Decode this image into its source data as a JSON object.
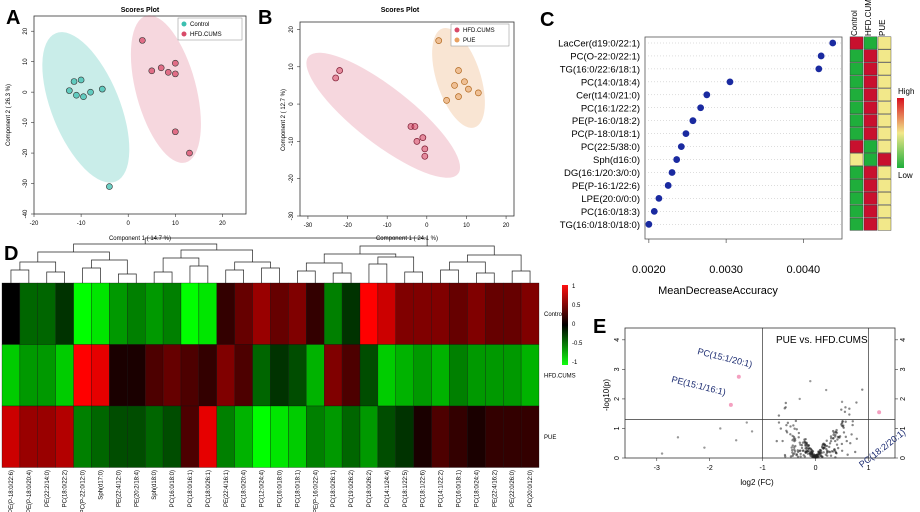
{
  "panels": {
    "A": {
      "letter": "A",
      "title": "Scores Plot",
      "xlabel": "Component 1 ( 14.7 %)",
      "ylabel": "Component 2 ( 26.3 %)",
      "xticks": [
        -20,
        -10,
        0,
        10,
        20
      ],
      "yticks": [
        20,
        10,
        0,
        -10,
        -20,
        -30,
        -40
      ],
      "legend": [
        "Control",
        "HFD.CUMS"
      ]
    },
    "B": {
      "letter": "B",
      "title": "Scores Plot",
      "xlabel": "Component 1 ( 24.1 %)",
      "ylabel": "Component 2 ( 12.7 %)",
      "xticks": [
        -30,
        -20,
        -10,
        0,
        10,
        20
      ],
      "yticks": [
        20,
        10,
        0,
        -10,
        -20,
        -30
      ],
      "legend": [
        "HFD.CUMS",
        "PUE"
      ]
    },
    "C": {
      "letter": "C",
      "xlabel": "MeanDecreaseAccuracy",
      "xticks": [
        "0.0020",
        "0.0030",
        "0.0040"
      ],
      "heat_cols": [
        "Control",
        "HFD.CUMS",
        "PUE"
      ],
      "colorbar_high": "High",
      "colorbar_low": "Low"
    },
    "D": {
      "letter": "D",
      "colorbar_ticks": [
        "1",
        "0.5",
        "0",
        "-0.5",
        "-1"
      ]
    },
    "E": {
      "letter": "E",
      "title": "PUE vs. HFD.CUMS",
      "xlabel": "log2 (FC)",
      "ylabel": "-log10(p)",
      "xticks": [
        -3,
        -2,
        -1,
        0,
        1
      ],
      "yticks": [
        0,
        1,
        2,
        3,
        4
      ],
      "annotations": [
        "PC(15:1/20:1)",
        "PE(15:1/16:1)",
        "PC(18:2/20:1)"
      ]
    }
  },
  "colors": {
    "control": "#3cbfb0",
    "hfd": "#d84a68",
    "pue": "#e8a060",
    "dot_c": "#1a2aa0",
    "heat_red": "#c8102e",
    "heat_green": "#1fae3b",
    "heat_yellow": "#f2e88a"
  },
  "chart_data": [
    {
      "type": "scatter",
      "panel": "A",
      "title": "Scores Plot",
      "xlim": [
        -20,
        25
      ],
      "ylim": [
        -40,
        25
      ],
      "series": [
        {
          "name": "Control",
          "points": [
            [
              -11,
              -1
            ],
            [
              -9.5,
              -1.5
            ],
            [
              -8,
              0
            ],
            [
              -10,
              4
            ],
            [
              -12.5,
              0.5
            ],
            [
              -5.5,
              1
            ],
            [
              -4,
              -31
            ],
            [
              -11.5,
              3.5
            ]
          ]
        },
        {
          "name": "HFD.CUMS",
          "points": [
            [
              3,
              17
            ],
            [
              5,
              7
            ],
            [
              7,
              8
            ],
            [
              8.5,
              6.5
            ],
            [
              10,
              9.5
            ],
            [
              10,
              6
            ],
            [
              10,
              -13
            ],
            [
              13,
              -20
            ]
          ]
        }
      ]
    },
    {
      "type": "scatter",
      "panel": "B",
      "title": "Scores Plot",
      "xlim": [
        -32,
        22
      ],
      "ylim": [
        -30,
        22
      ],
      "series": [
        {
          "name": "HFD.CUMS",
          "points": [
            [
              -22,
              9
            ],
            [
              -23,
              7
            ],
            [
              -4,
              -6
            ],
            [
              -3,
              -6
            ],
            [
              -1,
              -9
            ],
            [
              -2.5,
              -10
            ],
            [
              -0.5,
              -12
            ],
            [
              -0.5,
              -14
            ]
          ]
        },
        {
          "name": "PUE",
          "points": [
            [
              3,
              17
            ],
            [
              5,
              1
            ],
            [
              7,
              5
            ],
            [
              8,
              9
            ],
            [
              9.5,
              6
            ],
            [
              10.5,
              4
            ],
            [
              13,
              3
            ],
            [
              8,
              2
            ]
          ]
        }
      ]
    },
    {
      "type": "scatter",
      "panel": "C",
      "xlabel": "MeanDecreaseAccuracy",
      "xlim": [
        0.00195,
        0.0045
      ],
      "categories": [
        "LacCer(d19:0/22:1)",
        "PC(O-22:0/22:1)",
        "TG(16:0/22:6/18:1)",
        "PC(14:0/18:4)",
        "Cer(t14:0/21:0)",
        "PC(16:1/22:2)",
        "PE(P-16:0/18:2)",
        "PC(P-18:0/18:1)",
        "PC(22:5/38:0)",
        "Sph(d16:0)",
        "DG(16:1/20:3/0:0)",
        "PE(P-16:1/22:6)",
        "LPE(20:0/0:0)",
        "PC(16:0/18:3)",
        "TG(16:0/18:0/18:0)"
      ],
      "values": [
        0.00438,
        0.00423,
        0.0042,
        0.00305,
        0.00275,
        0.00267,
        0.00257,
        0.00248,
        0.00242,
        0.00236,
        0.0023,
        0.00225,
        0.00213,
        0.00207,
        0.002
      ],
      "heat": [
        [
          "hi",
          "lo",
          "mid"
        ],
        [
          "lo",
          "hi",
          "mid"
        ],
        [
          "lo",
          "hi",
          "mid"
        ],
        [
          "lo",
          "hi",
          "mid"
        ],
        [
          "lo",
          "hi",
          "mid"
        ],
        [
          "lo",
          "hi",
          "mid"
        ],
        [
          "lo",
          "hi",
          "mid"
        ],
        [
          "lo",
          "hi",
          "mid"
        ],
        [
          "hi",
          "lo",
          "mid"
        ],
        [
          "mid",
          "lo",
          "hi"
        ],
        [
          "lo",
          "hi",
          "mid"
        ],
        [
          "lo",
          "hi",
          "mid"
        ],
        [
          "lo",
          "hi",
          "mid"
        ],
        [
          "lo",
          "hi",
          "mid"
        ],
        [
          "lo",
          "hi",
          "mid"
        ]
      ]
    },
    {
      "type": "heatmap",
      "panel": "D",
      "rows": [
        "Control",
        "HFD.CUMS",
        "PUE"
      ],
      "columns": [
        "PE(P-18:0/22:6)",
        "PE(P-18:0/20:4)",
        "PE(22:2/14:0)",
        "PC(18:0/22:2)",
        "PC(P-22:0/12:0)",
        "Sph(d17:0)",
        "PE(22:4/12:0)",
        "PE(20:2/18:4)",
        "Sph(d18:0)",
        "PC(16:0/18:0)",
        "PC(18:0/16:1)",
        "PC(18:0/26:1)",
        "PE(22:4/16:1)",
        "PC(18:0/20:4)",
        "PC(12:0/24:4)",
        "PC(16:0/18:0)",
        "PC(18:0/18:1)",
        "PE(P-16:0/22:4)",
        "PC(18:0/26:1)",
        "PC(19:0/26:2)",
        "PC(18:0/26:2)",
        "PC(14:1/24:4)",
        "PC(18:1/22:5)",
        "PC(18:1/22:6)",
        "PC(14:1/22:2)",
        "PC(16:0/18:1)",
        "PC(18:0/24:4)",
        "PE(22:4/16:2)",
        "PE(22:0/26:0)",
        "PC(20:0/12:0)"
      ],
      "values": [
        [
          0,
          -0.4,
          -0.4,
          -0.2,
          -1,
          -0.9,
          -0.6,
          -0.5,
          -0.6,
          -0.5,
          -1,
          -0.9,
          0.2,
          0.4,
          0.6,
          0.4,
          0.5,
          0.2,
          -0.5,
          -0.2,
          1,
          0.8,
          0.5,
          0.5,
          0.5,
          0.4,
          0.5,
          0.4,
          0.4,
          0.5
        ],
        [
          -0.8,
          -0.6,
          -0.6,
          -0.8,
          1,
          0.9,
          0.1,
          0.1,
          0.3,
          0.4,
          0.3,
          0.2,
          0.5,
          0.3,
          -0.4,
          -0.2,
          -0.3,
          -0.7,
          0.5,
          0.3,
          -0.3,
          -0.8,
          -0.7,
          -0.6,
          -0.7,
          -0.5,
          -0.6,
          -0.6,
          -0.6,
          -0.7
        ],
        [
          0.8,
          0.6,
          0.6,
          0.7,
          -0.5,
          -0.4,
          -0.3,
          -0.3,
          -0.4,
          -0.3,
          0.3,
          0.9,
          -0.5,
          -0.7,
          -1,
          -0.9,
          -0.8,
          -0.5,
          -0.6,
          -0.4,
          -0.6,
          -0.3,
          -0.2,
          0.1,
          0.3,
          0.2,
          0.1,
          0.2,
          0.2,
          0.2
        ]
      ]
    },
    {
      "type": "scatter",
      "panel": "E",
      "title": "PUE vs. HFD.CUMS",
      "xlim": [
        -3.6,
        1.5
      ],
      "ylim": [
        0,
        4.4
      ],
      "highlighted": [
        {
          "label": "PC(15:1/20:1)",
          "x": -1.45,
          "y": 2.75
        },
        {
          "label": "PE(15:1/16:1)",
          "x": -1.6,
          "y": 1.8
        },
        {
          "label": "PC(18:2/20:1)",
          "x": 1.2,
          "y": 1.55
        }
      ],
      "threshold_x": [
        -1,
        1
      ],
      "threshold_y": 1.3
    }
  ]
}
